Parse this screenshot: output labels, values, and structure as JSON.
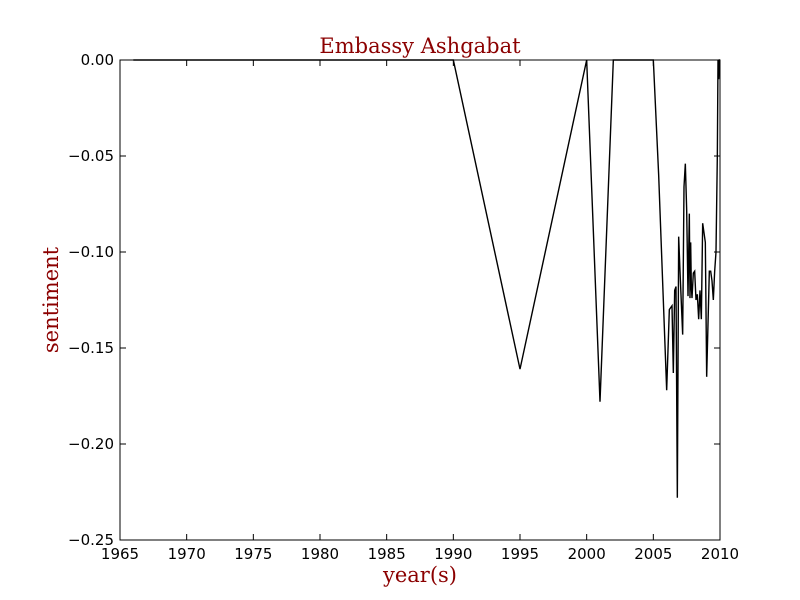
{
  "chart_data": {
    "type": "line",
    "title": "Embassy Ashgabat",
    "xlabel": "year(s)",
    "ylabel": "sentiment",
    "xlim": [
      1965,
      2010
    ],
    "ylim": [
      -0.25,
      0.0
    ],
    "x_ticks": [
      1965,
      1970,
      1975,
      1980,
      1985,
      1990,
      1995,
      2000,
      2005,
      2010
    ],
    "x_tick_labels": [
      "1965",
      "1970",
      "1975",
      "1980",
      "1985",
      "1990",
      "1995",
      "2000",
      "2005",
      "2010"
    ],
    "y_ticks": [
      0.0,
      -0.05,
      -0.1,
      -0.15,
      -0.2,
      -0.25
    ],
    "y_tick_labels": [
      "0.00",
      "−0.05",
      "−0.10",
      "−0.15",
      "−0.20",
      "−0.25"
    ],
    "grid": false,
    "legend": "none",
    "colors": {
      "line": "#000000",
      "text_accent": "#8b0000"
    },
    "series": [
      {
        "x": [
          1966.0,
          1990.0,
          1995.0,
          2000.0,
          2001.0,
          2002.0,
          2005.0,
          2005.4,
          2006.0,
          2006.2,
          2006.4,
          2006.5,
          2006.6,
          2006.7,
          2006.8,
          2006.9,
          2007.0,
          2007.2,
          2007.3,
          2007.4,
          2007.5,
          2007.6,
          2007.7,
          2007.75,
          2007.8,
          2007.85,
          2007.9,
          2008.0,
          2008.1,
          2008.2,
          2008.3,
          2008.4,
          2008.5,
          2008.6,
          2008.7,
          2008.8,
          2008.9,
          2009.0,
          2009.2,
          2009.3,
          2009.4,
          2009.5,
          2009.6,
          2009.7,
          2009.8,
          2009.85,
          2009.9,
          2009.95,
          2010.0
        ],
        "y": [
          0.0,
          0.0,
          -0.161,
          0.0,
          -0.178,
          0.0,
          0.0,
          -0.06,
          -0.172,
          -0.13,
          -0.128,
          -0.163,
          -0.12,
          -0.118,
          -0.228,
          -0.092,
          -0.11,
          -0.143,
          -0.066,
          -0.054,
          -0.078,
          -0.123,
          -0.08,
          -0.124,
          -0.095,
          -0.118,
          -0.124,
          -0.111,
          -0.11,
          -0.125,
          -0.122,
          -0.135,
          -0.12,
          -0.135,
          -0.085,
          -0.09,
          -0.095,
          -0.165,
          -0.11,
          -0.11,
          -0.115,
          -0.125,
          -0.11,
          -0.1,
          -0.05,
          0.0,
          -0.01,
          0.0,
          0.0
        ]
      }
    ]
  }
}
